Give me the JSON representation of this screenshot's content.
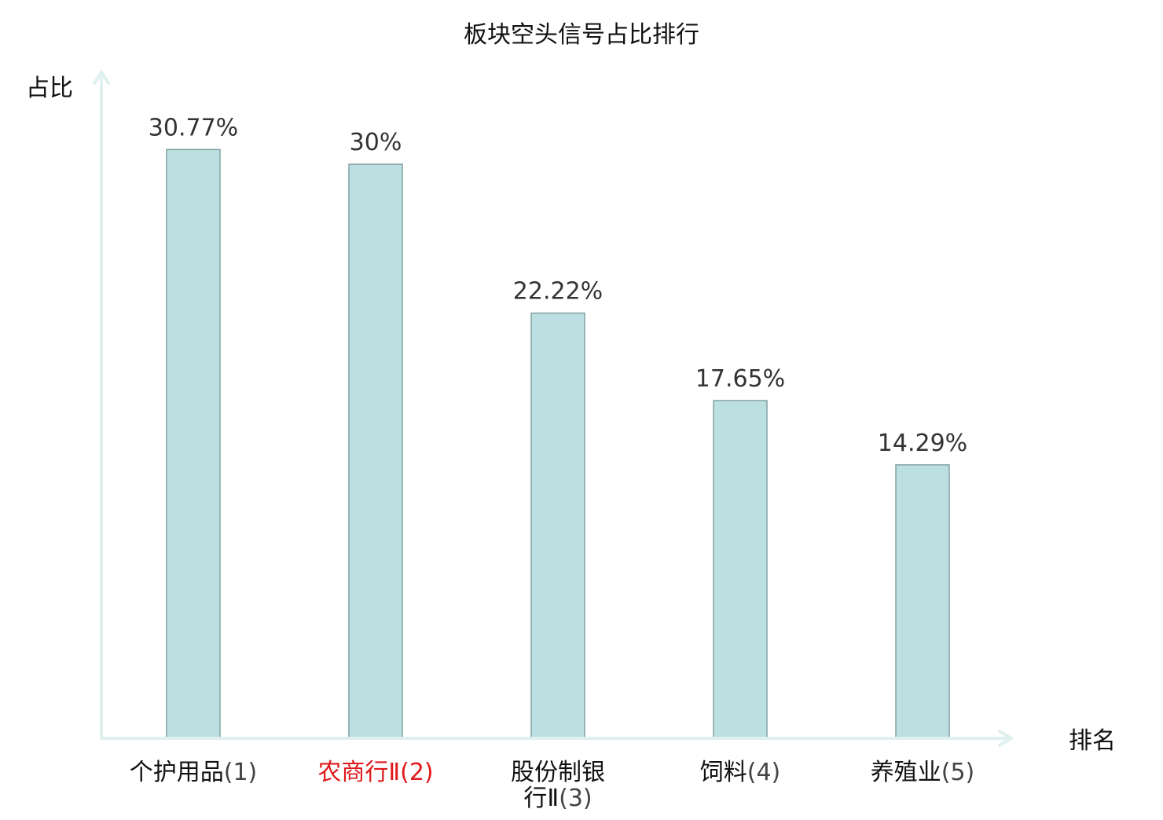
{
  "chart_data": {
    "type": "bar",
    "title": "板块空头信号占比排行",
    "ylabel": "占比",
    "xlabel": "排名",
    "categories": [
      "个护用品(1)",
      "农商行Ⅱ(2)",
      "股份制银行Ⅱ(3)",
      "饲料(4)",
      "养殖业(5)"
    ],
    "category_names": [
      "个护用品",
      "农商行Ⅱ",
      "股份制银行Ⅱ",
      "饲料",
      "养殖业"
    ],
    "ranks": [
      "(1)",
      "(2)",
      "(3)",
      "(4)",
      "(5)"
    ],
    "values": [
      30.77,
      30,
      22.22,
      17.65,
      14.29
    ],
    "value_labels": [
      "30.77%",
      "30%",
      "22.22%",
      "17.65%",
      "14.29%"
    ],
    "highlight_index": 1,
    "ylim": [
      0,
      33
    ],
    "grid": false,
    "colors": {
      "bar_fill": "#bce0e2",
      "bar_stroke": "#84a2a2",
      "axis": "#dff0ee",
      "text": "#111111",
      "value_text": "#333333",
      "rank_text": "#444444",
      "highlight_text": "#e0191c"
    }
  }
}
